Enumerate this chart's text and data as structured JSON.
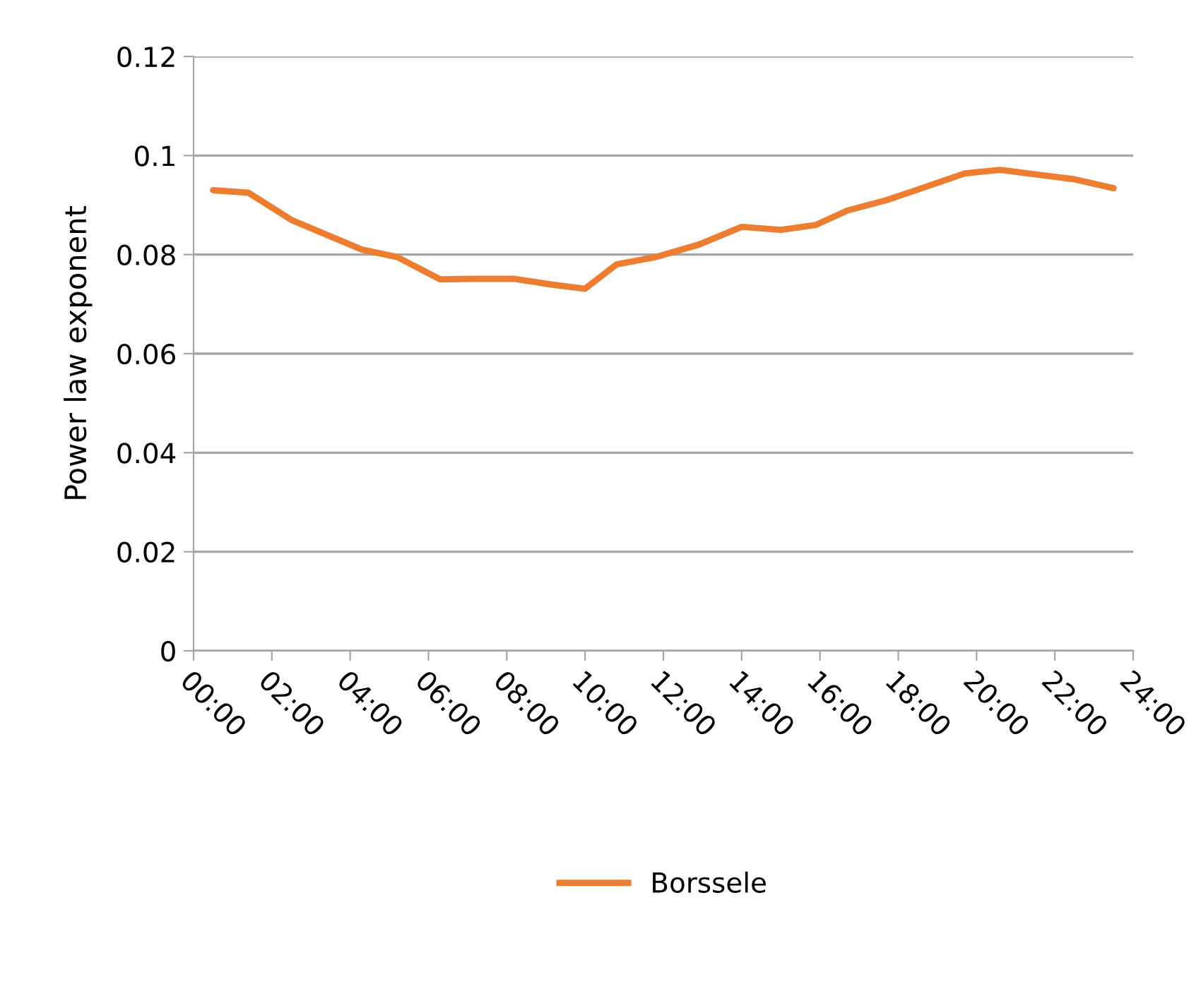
{
  "chart_data": {
    "type": "line",
    "ylabel": "Power law exponent",
    "x": [
      0.5,
      1.4,
      2.5,
      3.4,
      4.3,
      5.2,
      6.3,
      7.2,
      8.2,
      9.1,
      10.0,
      10.8,
      11.8,
      12.9,
      14.0,
      15.0,
      15.9,
      16.7,
      17.7,
      18.6,
      19.7,
      20.6,
      21.7,
      22.5,
      23.5
    ],
    "series": [
      {
        "name": "Borssele",
        "color": "#ed7d31",
        "values": [
          0.093,
          0.0925,
          0.087,
          0.084,
          0.081,
          0.0795,
          0.075,
          0.0751,
          0.0751,
          0.074,
          0.0731,
          0.078,
          0.0795,
          0.082,
          0.0856,
          0.085,
          0.086,
          0.0889,
          0.091,
          0.0934,
          0.0964,
          0.0971,
          0.096,
          0.0952,
          0.0934
        ]
      }
    ],
    "xlim": [
      0,
      24
    ],
    "xticks": [
      {
        "value": 0,
        "label": "00:00"
      },
      {
        "value": 2,
        "label": "02:00"
      },
      {
        "value": 4,
        "label": "04:00"
      },
      {
        "value": 6,
        "label": "06:00"
      },
      {
        "value": 8,
        "label": "08:00"
      },
      {
        "value": 10,
        "label": "10:00"
      },
      {
        "value": 12,
        "label": "12:00"
      },
      {
        "value": 14,
        "label": "14:00"
      },
      {
        "value": 16,
        "label": "16:00"
      },
      {
        "value": 18,
        "label": "18:00"
      },
      {
        "value": 20,
        "label": "20:00"
      },
      {
        "value": 22,
        "label": "22:00"
      },
      {
        "value": 24,
        "label": "24:00"
      }
    ],
    "ylim": [
      0,
      0.12
    ],
    "yticks": [
      {
        "value": 0,
        "label": "0"
      },
      {
        "value": 0.02,
        "label": "0.02"
      },
      {
        "value": 0.04,
        "label": "0.04"
      },
      {
        "value": 0.06,
        "label": "0.06"
      },
      {
        "value": 0.08,
        "label": "0.08"
      },
      {
        "value": 0.1,
        "label": "0.1"
      },
      {
        "value": 0.12,
        "label": "0.12"
      }
    ],
    "grid": "y",
    "legend": "bottom",
    "marker": "none",
    "line_style": "solid"
  }
}
